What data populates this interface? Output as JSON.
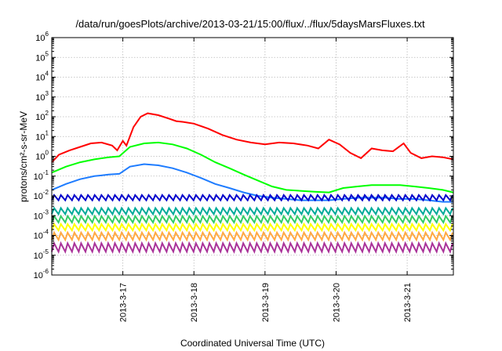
{
  "chart_data": {
    "type": "line",
    "title": "/data/run/goesPlots/archive/2013-03-21/15:00/flux/../flux/5daysMarsFluxes.txt",
    "xlabel": "Coordinated Universal Time (UTC)",
    "ylabel": "protons/cm²-s-sr-MeV",
    "y_scale": "log",
    "ylim_exp": [
      -6,
      6
    ],
    "y_ticks_exp": [
      -6,
      -5,
      -4,
      -3,
      -2,
      -1,
      0,
      1,
      2,
      3,
      4,
      5,
      6
    ],
    "x_tick_labels": [
      "2013-3-17",
      "2013-3-18",
      "2013-3-19",
      "2013-3-20",
      "2013-3-21"
    ],
    "x_range_days": [
      16.0,
      21.65
    ],
    "x_tick_days": [
      17,
      18,
      19,
      20,
      21
    ],
    "grid": true,
    "series": [
      {
        "color": "#ff0000",
        "x": [
          16.0,
          16.1,
          16.25,
          16.4,
          16.55,
          16.7,
          16.85,
          16.92,
          17.0,
          17.05,
          17.15,
          17.25,
          17.35,
          17.5,
          17.65,
          17.75,
          17.85,
          18.0,
          18.2,
          18.4,
          18.6,
          18.8,
          19.0,
          19.2,
          19.4,
          19.6,
          19.75,
          19.9,
          20.05,
          20.2,
          20.35,
          20.5,
          20.65,
          20.8,
          20.95,
          21.05,
          21.2,
          21.35,
          21.5,
          21.65
        ],
        "y": [
          0.5,
          1.2,
          2.0,
          3.0,
          4.5,
          5.0,
          3.5,
          2.0,
          6.0,
          3.5,
          30,
          100,
          150,
          120,
          80,
          60,
          55,
          45,
          25,
          12,
          7,
          5,
          4,
          5,
          4.5,
          3.5,
          2.5,
          7,
          4,
          1.5,
          0.8,
          2.5,
          2.0,
          1.8,
          4.5,
          1.5,
          0.8,
          1.0,
          0.9,
          0.7
        ]
      },
      {
        "color": "#00ff00",
        "x": [
          16.0,
          16.2,
          16.4,
          16.6,
          16.8,
          16.95,
          17.1,
          17.3,
          17.5,
          17.7,
          17.9,
          18.1,
          18.3,
          18.5,
          18.7,
          18.9,
          19.1,
          19.3,
          19.5,
          19.7,
          19.9,
          20.1,
          20.3,
          20.5,
          20.7,
          20.9,
          21.1,
          21.3,
          21.5,
          21.65
        ],
        "y": [
          0.15,
          0.3,
          0.5,
          0.7,
          0.9,
          1.0,
          3.0,
          4.5,
          5.0,
          4.0,
          2.5,
          1.2,
          0.5,
          0.25,
          0.12,
          0.06,
          0.03,
          0.02,
          0.018,
          0.016,
          0.015,
          0.025,
          0.03,
          0.035,
          0.035,
          0.035,
          0.03,
          0.025,
          0.02,
          0.015
        ]
      },
      {
        "color": "#1e7cff",
        "x": [
          16.0,
          16.2,
          16.4,
          16.6,
          16.8,
          16.95,
          17.1,
          17.3,
          17.5,
          17.7,
          17.9,
          18.1,
          18.3,
          18.5,
          18.7,
          18.9,
          19.1,
          19.3,
          19.5,
          19.7,
          19.9,
          20.1,
          20.3,
          20.5,
          20.7,
          20.9,
          21.1,
          21.3,
          21.5,
          21.65
        ],
        "y": [
          0.02,
          0.04,
          0.07,
          0.1,
          0.12,
          0.13,
          0.3,
          0.4,
          0.35,
          0.25,
          0.15,
          0.08,
          0.04,
          0.025,
          0.015,
          0.01,
          0.008,
          0.007,
          0.006,
          0.006,
          0.006,
          0.007,
          0.008,
          0.008,
          0.008,
          0.007,
          0.007,
          0.006,
          0.005,
          0.005
        ]
      },
      {
        "color": "#0000cc",
        "base": 0.006,
        "amp": 0.005
      },
      {
        "color": "#00aa99",
        "base": 0.0012,
        "amp": 0.0012
      },
      {
        "color": "#33cc66",
        "base": 0.00045,
        "amp": 0.0005
      },
      {
        "color": "#ffff00",
        "base": 0.00018,
        "amp": 0.0002
      },
      {
        "color": "#ffaa44",
        "base": 6e-05,
        "amp": 8e-05
      },
      {
        "color": "#aa3399",
        "base": 1.5e-05,
        "amp": 2.5e-05
      }
    ]
  }
}
